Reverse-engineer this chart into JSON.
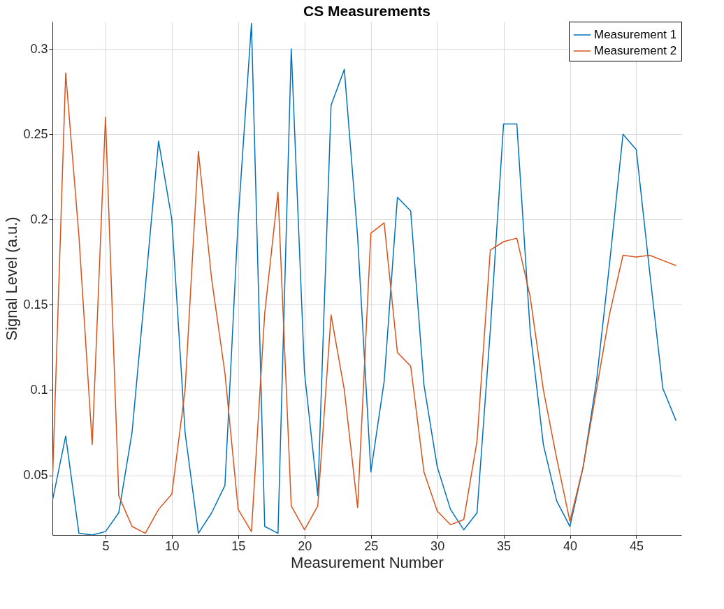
{
  "chart_data": {
    "type": "line",
    "title": "CS Measurements",
    "xlabel": "Measurement Number",
    "ylabel": "Signal Level (a.u.)",
    "x": [
      1,
      2,
      3,
      4,
      5,
      6,
      7,
      8,
      9,
      10,
      11,
      12,
      13,
      14,
      15,
      16,
      17,
      18,
      19,
      20,
      21,
      22,
      23,
      24,
      25,
      26,
      27,
      28,
      29,
      30,
      31,
      32,
      33,
      34,
      35,
      36,
      37,
      38,
      39,
      40,
      41,
      42,
      43,
      44,
      45,
      46,
      47,
      48
    ],
    "series": [
      {
        "name": "Measurement 1",
        "color": "#0072bd",
        "values": [
          0.035,
          0.073,
          0.016,
          0.015,
          0.017,
          0.028,
          0.075,
          0.16,
          0.246,
          0.2,
          0.075,
          0.016,
          0.028,
          0.044,
          0.2,
          0.315,
          0.02,
          0.016,
          0.3,
          0.11,
          0.038,
          0.267,
          0.288,
          0.19,
          0.052,
          0.105,
          0.213,
          0.205,
          0.103,
          0.055,
          0.03,
          0.018,
          0.028,
          0.135,
          0.256,
          0.256,
          0.135,
          0.068,
          0.035,
          0.02,
          0.055,
          0.105,
          0.175,
          0.25,
          0.241,
          0.17,
          0.101,
          0.082
        ]
      },
      {
        "name": "Measurement 2",
        "color": "#d95319",
        "values": [
          0.045,
          0.286,
          0.19,
          0.068,
          0.26,
          0.038,
          0.02,
          0.016,
          0.03,
          0.039,
          0.1,
          0.24,
          0.165,
          0.11,
          0.03,
          0.017,
          0.145,
          0.216,
          0.032,
          0.018,
          0.032,
          0.144,
          0.1,
          0.031,
          0.192,
          0.198,
          0.122,
          0.114,
          0.052,
          0.029,
          0.021,
          0.024,
          0.07,
          0.182,
          0.187,
          0.189,
          0.155,
          0.1,
          0.06,
          0.023,
          0.055,
          0.1,
          0.145,
          0.179,
          0.178,
          0.179,
          0.176,
          0.173
        ]
      }
    ],
    "xlim": [
      1,
      48.4
    ],
    "ylim": [
      0.015,
      0.316
    ],
    "xticks": [
      5,
      10,
      15,
      20,
      25,
      30,
      35,
      40,
      45
    ],
    "yticks": [
      0.05,
      0.1,
      0.15,
      0.2,
      0.25,
      0.3
    ],
    "grid": true,
    "legend": "top right",
    "marker": "none",
    "line_style": "solid"
  }
}
